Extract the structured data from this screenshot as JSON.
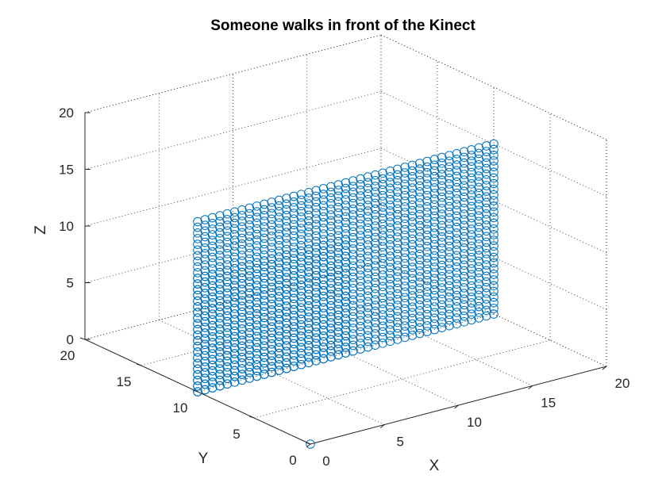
{
  "chart_data": {
    "type": "scatter3",
    "title": "Someone walks in front of the Kinect",
    "xlabel": "X",
    "ylabel": "Y",
    "zlabel": "Z",
    "xlim": [
      0,
      20
    ],
    "ylim": [
      0,
      20
    ],
    "zlim": [
      0,
      20
    ],
    "xticks": [
      0,
      5,
      10,
      15,
      20
    ],
    "yticks": [
      0,
      5,
      10,
      15,
      20
    ],
    "zticks": [
      0,
      5,
      10,
      15,
      20
    ],
    "grid": true,
    "box": true,
    "marker": "circle",
    "marker_color": "#0072BD",
    "planes": [
      {
        "x": [
          0,
          10
        ],
        "y": 10,
        "z": [
          0,
          10
        ],
        "step": 0.5
      },
      {
        "x": [
          0,
          20
        ],
        "y": 10,
        "z": [
          0,
          15
        ],
        "step": 0.5
      }
    ],
    "extra_points": [
      {
        "x": 0,
        "y": 0,
        "z": 0
      }
    ]
  }
}
